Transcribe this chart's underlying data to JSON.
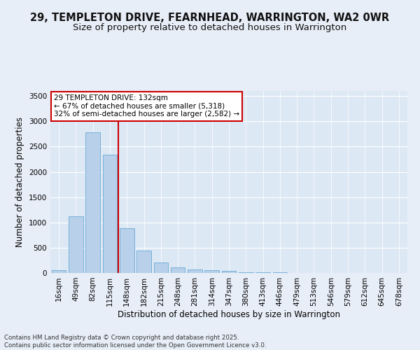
{
  "title_line1": "29, TEMPLETON DRIVE, FEARNHEAD, WARRINGTON, WA2 0WR",
  "title_line2": "Size of property relative to detached houses in Warrington",
  "xlabel": "Distribution of detached houses by size in Warrington",
  "ylabel": "Number of detached properties",
  "categories": [
    "16sqm",
    "49sqm",
    "82sqm",
    "115sqm",
    "148sqm",
    "182sqm",
    "215sqm",
    "248sqm",
    "281sqm",
    "314sqm",
    "347sqm",
    "380sqm",
    "413sqm",
    "446sqm",
    "479sqm",
    "513sqm",
    "546sqm",
    "579sqm",
    "612sqm",
    "645sqm",
    "678sqm"
  ],
  "values": [
    50,
    1120,
    2780,
    2340,
    880,
    440,
    205,
    105,
    75,
    55,
    35,
    20,
    10,
    7,
    4,
    3,
    2,
    1,
    1,
    0,
    0
  ],
  "bar_color": "#b8d0ea",
  "bar_edge_color": "#6aaad4",
  "vline_color": "#cc0000",
  "vline_x": 2.5,
  "annotation_title": "29 TEMPLETON DRIVE: 132sqm",
  "annotation_line2": "← 67% of detached houses are smaller (5,318)",
  "annotation_line3": "32% of semi-detached houses are larger (2,582) →",
  "annotation_box_color": "#ffffff",
  "annotation_box_edge": "#cc0000",
  "ylim": [
    0,
    3600
  ],
  "yticks": [
    0,
    500,
    1000,
    1500,
    2000,
    2500,
    3000,
    3500
  ],
  "bg_color": "#dde8f5",
  "fig_bg_color": "#e8eef8",
  "footer_line1": "Contains HM Land Registry data © Crown copyright and database right 2025.",
  "footer_line2": "Contains public sector information licensed under the Open Government Licence v3.0.",
  "title_fontsize": 10.5,
  "subtitle_fontsize": 9.5,
  "ylabel_fontsize": 8.5,
  "xlabel_fontsize": 8.5,
  "tick_fontsize": 7.5,
  "annotation_fontsize": 7.5,
  "footer_fontsize": 6.2
}
